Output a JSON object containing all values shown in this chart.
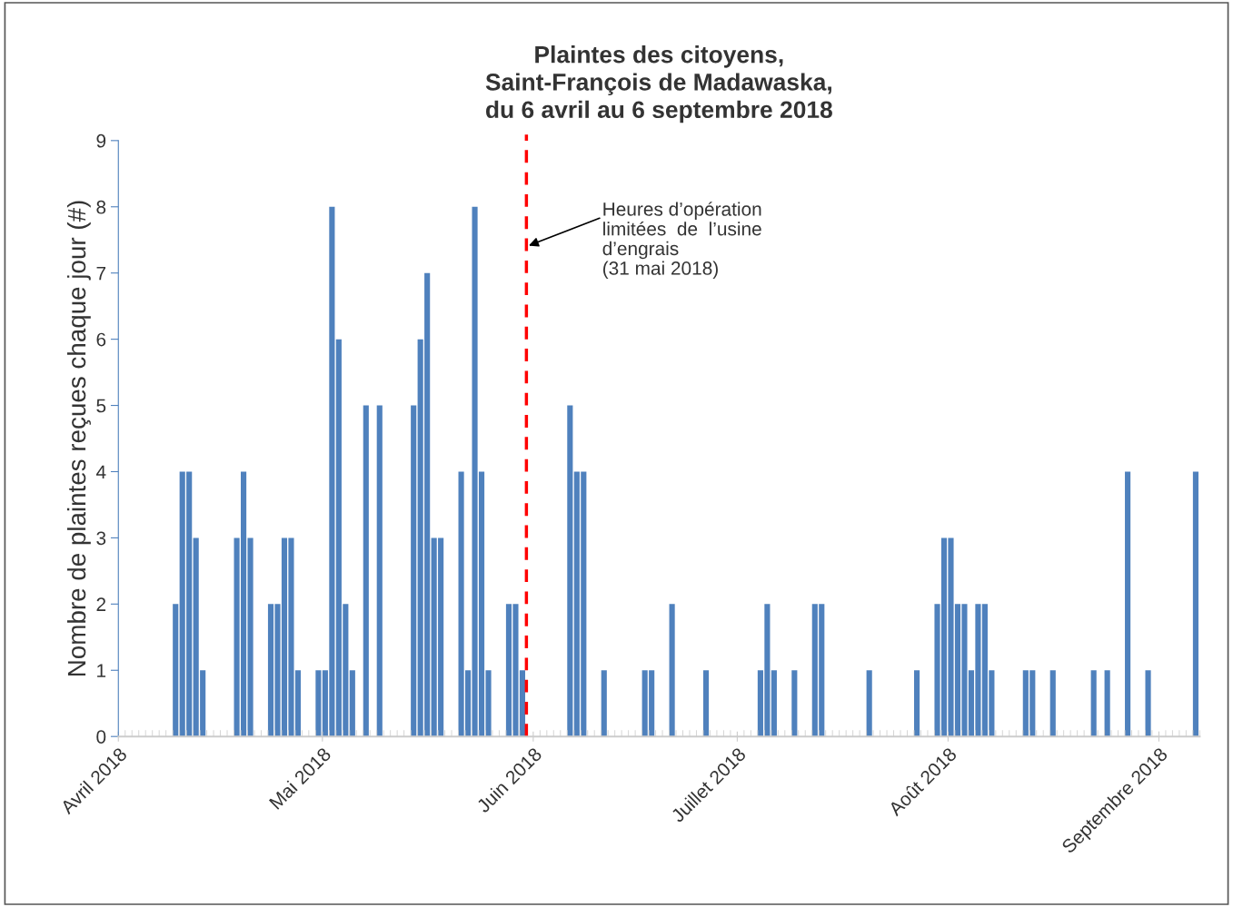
{
  "chart_data": {
    "type": "bar",
    "title": "Plaintes des citoyens,\nSaint-François de Madawaska,\ndu 6 avril au 6 septembre 2018",
    "ylabel": "Nombre de plaintes reçues chaque jour (#)",
    "x": [
      "2018-04-09",
      "2018-04-10",
      "2018-04-11",
      "2018-04-12",
      "2018-04-13",
      "2018-04-18",
      "2018-04-19",
      "2018-04-20",
      "2018-04-23",
      "2018-04-24",
      "2018-04-25",
      "2018-04-26",
      "2018-04-27",
      "2018-04-30",
      "2018-05-01",
      "2018-05-02",
      "2018-05-03",
      "2018-05-04",
      "2018-05-05",
      "2018-05-07",
      "2018-05-09",
      "2018-05-14",
      "2018-05-15",
      "2018-05-16",
      "2018-05-17",
      "2018-05-18",
      "2018-05-21",
      "2018-05-22",
      "2018-05-23",
      "2018-05-24",
      "2018-05-25",
      "2018-05-28",
      "2018-05-29",
      "2018-05-30",
      "2018-06-06",
      "2018-06-07",
      "2018-06-08",
      "2018-06-11",
      "2018-06-17",
      "2018-06-18",
      "2018-06-21",
      "2018-06-26",
      "2018-07-04",
      "2018-07-05",
      "2018-07-06",
      "2018-07-09",
      "2018-07-12",
      "2018-07-13",
      "2018-07-20",
      "2018-07-27",
      "2018-07-30",
      "2018-07-31",
      "2018-08-01",
      "2018-08-02",
      "2018-08-03",
      "2018-08-04",
      "2018-08-05",
      "2018-08-06",
      "2018-08-07",
      "2018-08-12",
      "2018-08-13",
      "2018-08-16",
      "2018-08-22",
      "2018-08-24",
      "2018-08-27",
      "2018-08-30",
      "2018-09-06"
    ],
    "values": [
      2,
      4,
      4,
      3,
      1,
      3,
      4,
      3,
      2,
      2,
      3,
      3,
      1,
      1,
      1,
      8,
      6,
      2,
      1,
      5,
      5,
      5,
      6,
      7,
      3,
      3,
      4,
      1,
      8,
      4,
      1,
      2,
      2,
      1,
      5,
      4,
      4,
      1,
      1,
      1,
      2,
      1,
      1,
      2,
      1,
      1,
      2,
      2,
      1,
      1,
      2,
      3,
      3,
      2,
      2,
      1,
      2,
      2,
      1,
      1,
      1,
      1,
      1,
      1,
      4,
      1,
      4
    ],
    "color": "#4f81bd",
    "xlim": [
      "2018-04-01",
      "2018-09-07"
    ],
    "xticks": [
      {
        "value": "2018-04-01",
        "label": "Avril 2018"
      },
      {
        "value": "2018-05-01",
        "label": "Mai 2018"
      },
      {
        "value": "2018-06-01",
        "label": "Juin 2018"
      },
      {
        "value": "2018-07-01",
        "label": "Juillet 2018"
      },
      {
        "value": "2018-08-01",
        "label": "Août 2018"
      },
      {
        "value": "2018-09-01",
        "label": "Septembre 2018"
      }
    ],
    "ylim": [
      0,
      9
    ],
    "yticks": [
      0,
      1,
      2,
      3,
      4,
      5,
      6,
      7,
      8,
      9
    ],
    "grid": false,
    "ref_lines": [
      {
        "axis": "x",
        "value": "2018-05-31",
        "color": "#ff0000",
        "line_style": "dashed"
      }
    ],
    "annotations": [
      {
        "text": "Heures d’opération\nlimitées  de  l’usine\nd’engrais\n(31 mai 2018)",
        "x": "2018-05-31",
        "y": 7.4
      }
    ]
  }
}
